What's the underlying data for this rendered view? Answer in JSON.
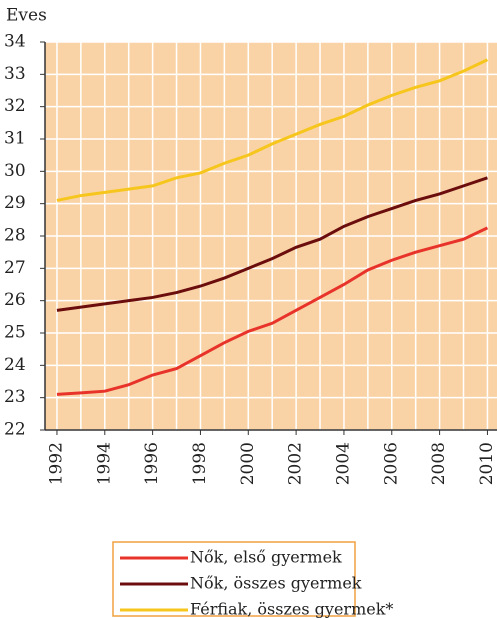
{
  "chart_data": {
    "type": "line",
    "y_label": "Eves",
    "x": [
      1992,
      1993,
      1994,
      1995,
      1996,
      1997,
      1998,
      1999,
      2000,
      2001,
      2002,
      2003,
      2004,
      2005,
      2006,
      2007,
      2008,
      2009,
      2010
    ],
    "series": [
      {
        "name": "Nők, első gyermek",
        "color": "#e8332a",
        "values": [
          23.1,
          23.15,
          23.2,
          23.4,
          23.7,
          23.9,
          24.3,
          24.7,
          25.05,
          25.3,
          25.7,
          26.1,
          26.5,
          26.95,
          27.25,
          27.5,
          27.7,
          27.9,
          28.25
        ]
      },
      {
        "name": "Nők, összes gyermek",
        "color": "#6b0d0d",
        "values": [
          25.7,
          25.8,
          25.9,
          26.0,
          26.1,
          26.25,
          26.45,
          26.7,
          27.0,
          27.3,
          27.65,
          27.9,
          28.3,
          28.6,
          28.85,
          29.1,
          29.3,
          29.55,
          29.8
        ]
      },
      {
        "name": "Férfiak, összes gyermek*",
        "color": "#f7c61d",
        "values": [
          29.1,
          29.25,
          29.35,
          29.45,
          29.55,
          29.8,
          29.95,
          30.25,
          30.5,
          30.85,
          31.15,
          31.45,
          31.7,
          32.05,
          32.35,
          32.6,
          32.8,
          33.1,
          33.45
        ]
      }
    ],
    "xlim": [
      1991.5,
      2010.4
    ],
    "xticks": [
      1992,
      1994,
      1996,
      1998,
      2000,
      2002,
      2004,
      2006,
      2008,
      2010
    ],
    "ylim": [
      22,
      34
    ],
    "yticks": [
      22,
      23,
      24,
      25,
      26,
      27,
      28,
      29,
      30,
      31,
      32,
      33,
      34
    ],
    "grid": true,
    "background": "#f9d3a6"
  }
}
